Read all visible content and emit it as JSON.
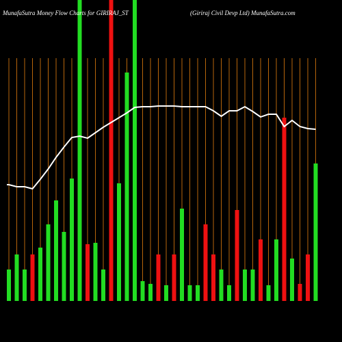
{
  "chart_data": {
    "type": "bar",
    "title": "MunafaSutra  Money Flow  Charts for GIRIRAJ_ST",
    "subtitle": "(Giriraj Civil Devp Ltd) MunafaSutra.com",
    "ylim": [
      0,
      440
    ],
    "grid": true,
    "values": [
      46,
      68,
      46,
      68,
      78,
      112,
      147,
      101,
      179,
      440,
      83,
      85,
      46,
      440,
      172,
      334,
      440,
      29,
      25,
      68,
      23,
      68,
      135,
      23,
      23,
      112,
      68,
      46,
      23,
      133,
      46,
      46,
      90,
      23,
      90,
      268,
      62,
      25,
      68,
      201
    ],
    "colors": [
      "#22dd22",
      "#22dd22",
      "#22dd22",
      "#ee1111",
      "#22dd22",
      "#22dd22",
      "#22dd22",
      "#22dd22",
      "#22dd22",
      "#22dd22",
      "#ee1111",
      "#22dd22",
      "#22dd22",
      "#ee1111",
      "#22dd22",
      "#22dd22",
      "#22dd22",
      "#22dd22",
      "#22dd22",
      "#ee1111",
      "#22dd22",
      "#ee1111",
      "#22dd22",
      "#22dd22",
      "#22dd22",
      "#ee1111",
      "#ee1111",
      "#22dd22",
      "#22dd22",
      "#ee1111",
      "#22dd22",
      "#22dd22",
      "#ee1111",
      "#22dd22",
      "#22dd22",
      "#ee1111",
      "#22dd22",
      "#ee1111",
      "#ee1111",
      "#22dd22"
    ],
    "line": {
      "color": "#ffffff",
      "values": [
        170,
        167,
        167,
        164,
        178,
        193,
        210,
        225,
        239,
        241,
        238,
        246,
        254,
        261,
        268,
        275,
        283,
        284,
        284,
        285,
        285,
        285,
        284,
        284,
        284,
        284,
        278,
        270,
        278,
        278,
        284,
        277,
        269,
        273,
        273,
        255,
        264,
        255,
        252,
        251
      ]
    }
  }
}
